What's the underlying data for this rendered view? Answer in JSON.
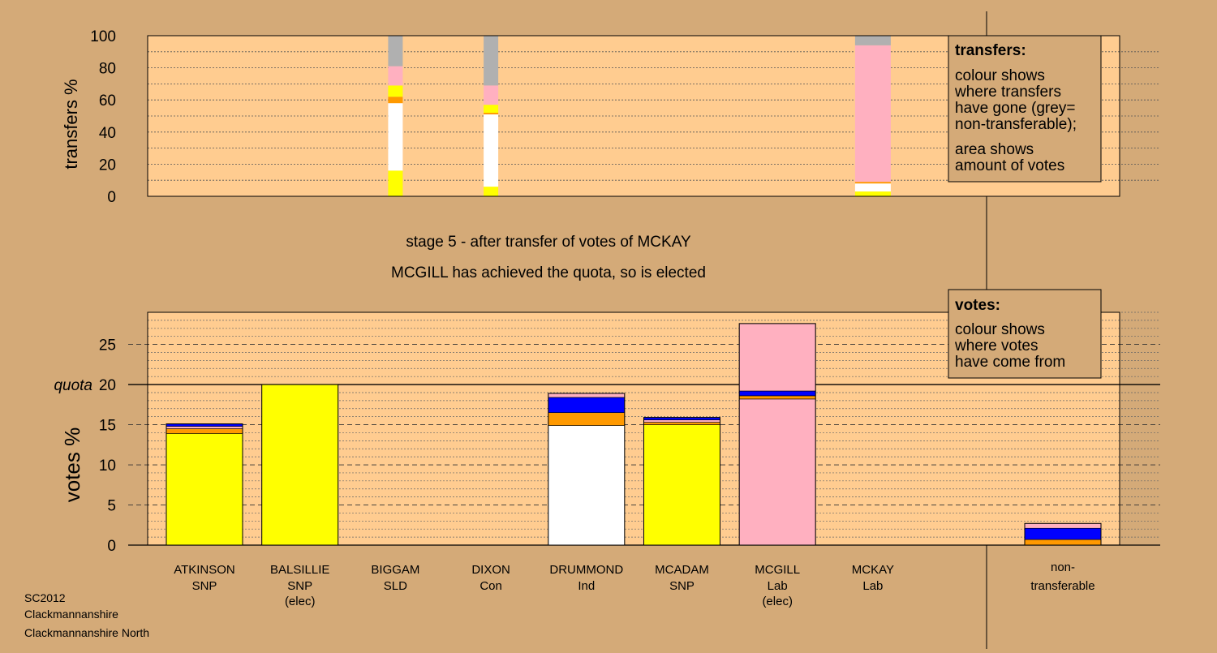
{
  "colors": {
    "background": "#d4aa78",
    "plot_bg": "#ffcc90",
    "SNP": "#ffff00",
    "Ind": "#ffffff",
    "Lab": "#ffb0c0",
    "SLD": "#ff9900",
    "Con": "#0000ff",
    "nontransferable": "#b0b0b0"
  },
  "footer": [
    "SC2012",
    "Clackmannanshire",
    "Clackmannanshire North"
  ],
  "stage_title": "stage 5 - after transfer of votes of MCKAY",
  "stage_subtitle": "MCGILL has achieved the quota, so is elected",
  "transfers_legend": {
    "heading": "transfers:",
    "line1": "colour shows",
    "line2": "where transfers",
    "line3": "have gone (grey=",
    "line4": "non-transferable);",
    "line5": "area shows",
    "line6": "amount of votes"
  },
  "votes_legend": {
    "heading": "votes:",
    "line1": "colour shows",
    "line2": "where votes",
    "line3": "have come from"
  },
  "chart_data": [
    {
      "type": "bar",
      "name": "transfers",
      "ylabel": "transfers %",
      "ylim": [
        0,
        100
      ],
      "yticks": [
        0,
        20,
        40,
        60,
        80,
        100
      ],
      "grid": true,
      "transfer_columns": [
        {
          "from": "BIGGAM",
          "segments": [
            {
              "party": "SNP",
              "value": 16
            },
            {
              "party": "Ind",
              "value": 42
            },
            {
              "party": "SLD",
              "value": 4
            },
            {
              "party": "SNP",
              "value": 7
            },
            {
              "party": "Lab",
              "value": 12
            },
            {
              "party": "nontransferable",
              "value": 19
            }
          ]
        },
        {
          "from": "DIXON",
          "segments": [
            {
              "party": "SNP",
              "value": 6
            },
            {
              "party": "Ind",
              "value": 45
            },
            {
              "party": "SLD",
              "value": 1
            },
            {
              "party": "SNP",
              "value": 5
            },
            {
              "party": "Lab",
              "value": 12
            },
            {
              "party": "nontransferable",
              "value": 31
            }
          ]
        },
        {
          "from": "MCKAY",
          "segments": [
            {
              "party": "SNP",
              "value": 3
            },
            {
              "party": "Ind",
              "value": 5
            },
            {
              "party": "SLD",
              "value": 1
            },
            {
              "party": "Lab",
              "value": 85
            },
            {
              "party": "nontransferable",
              "value": 6
            }
          ]
        }
      ]
    },
    {
      "type": "bar",
      "name": "votes",
      "ylabel": "votes %",
      "ylim": [
        0,
        29
      ],
      "yticks": [
        0,
        5,
        10,
        15,
        20,
        25
      ],
      "quota": 20,
      "quota_label": "quota",
      "grid": true,
      "bars": [
        {
          "name": "ATKINSON",
          "party": "SNP",
          "elected": "",
          "segments": [
            {
              "party": "SNP",
              "value": 13.9
            },
            {
              "party": "SLD",
              "value": 0.6
            },
            {
              "party": "Lab",
              "value": 0.3
            },
            {
              "party": "Con",
              "value": 0.3
            }
          ]
        },
        {
          "name": "BALSILLIE",
          "party": "SNP",
          "elected": "(elec)",
          "segments": [
            {
              "party": "SNP",
              "value": 20.0
            }
          ]
        },
        {
          "name": "BIGGAM",
          "party": "SLD",
          "elected": "",
          "segments": []
        },
        {
          "name": "DIXON",
          "party": "Con",
          "elected": "",
          "segments": []
        },
        {
          "name": "DRUMMOND",
          "party": "Ind",
          "elected": "",
          "segments": [
            {
              "party": "Ind",
              "value": 14.9
            },
            {
              "party": "SLD",
              "value": 1.6
            },
            {
              "party": "Con",
              "value": 1.9
            },
            {
              "party": "Lab",
              "value": 0.5
            }
          ]
        },
        {
          "name": "MCADAM",
          "party": "SNP",
          "elected": "",
          "segments": [
            {
              "party": "SNP",
              "value": 15.0
            },
            {
              "party": "SLD",
              "value": 0.3
            },
            {
              "party": "Lab",
              "value": 0.3
            },
            {
              "party": "Con",
              "value": 0.3
            }
          ]
        },
        {
          "name": "MCGILL",
          "party": "Lab",
          "elected": "(elec)",
          "segments": [
            {
              "party": "Lab",
              "value": 18.2
            },
            {
              "party": "SLD",
              "value": 0.4
            },
            {
              "party": "Con",
              "value": 0.6
            },
            {
              "party": "Lab",
              "value": 8.4
            }
          ]
        },
        {
          "name": "MCKAY",
          "party": "Lab",
          "elected": "",
          "segments": []
        }
      ],
      "nontransferable": {
        "line1": "non-",
        "line2": "transferable",
        "segments": [
          {
            "party": "SLD",
            "value": 0.7
          },
          {
            "party": "Con",
            "value": 1.4
          },
          {
            "party": "Lab",
            "value": 0.6
          }
        ]
      }
    }
  ]
}
